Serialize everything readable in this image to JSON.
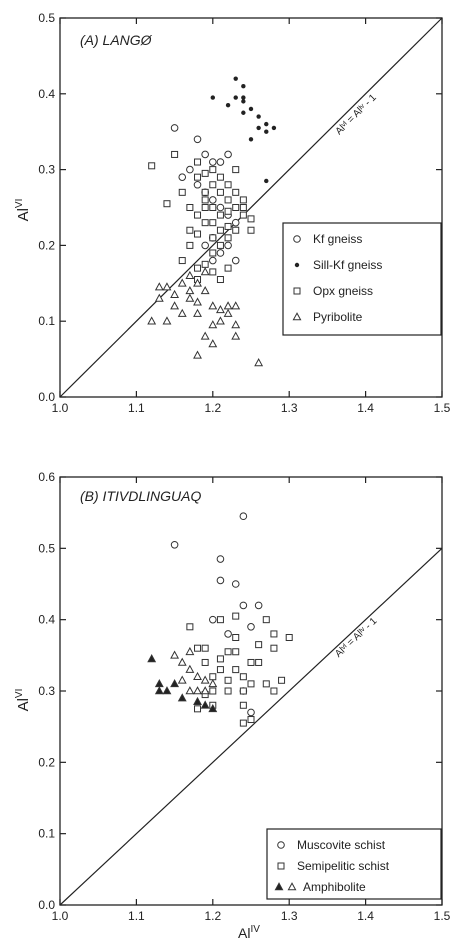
{
  "chart_data": [
    {
      "type": "scatter",
      "title": "(A) LANGØ",
      "xlabel": "",
      "ylabel": "Al^VI",
      "ylabel_base": "Al",
      "ylabel_sup": "VI",
      "xlim": [
        1.0,
        1.5
      ],
      "ylim": [
        0.0,
        0.5
      ],
      "xticks": [
        "1.0",
        "1.1",
        "1.2",
        "1.3",
        "1.4",
        "1.5"
      ],
      "yticks": [
        "0.0",
        "0.1",
        "0.2",
        "0.3",
        "0.4",
        "0.5"
      ],
      "reference_line": {
        "label": "Al^VI = Al^IV - 1",
        "label_text": "Alᵛᴵ = Alᴵᵛ - 1",
        "from": [
          1.0,
          0.0
        ],
        "to": [
          1.5,
          0.5
        ]
      },
      "legend_position": "right-middle",
      "grid": false,
      "series": [
        {
          "name": "Kf gneiss",
          "marker": "open-circle",
          "points": [
            [
              1.15,
              0.355
            ],
            [
              1.17,
              0.3
            ],
            [
              1.16,
              0.29
            ],
            [
              1.18,
              0.34
            ],
            [
              1.19,
              0.32
            ],
            [
              1.2,
              0.31
            ],
            [
              1.21,
              0.31
            ],
            [
              1.22,
              0.32
            ],
            [
              1.18,
              0.28
            ],
            [
              1.19,
              0.27
            ],
            [
              1.2,
              0.26
            ],
            [
              1.21,
              0.25
            ],
            [
              1.22,
              0.24
            ],
            [
              1.23,
              0.23
            ],
            [
              1.2,
              0.21
            ],
            [
              1.19,
              0.2
            ],
            [
              1.21,
              0.19
            ],
            [
              1.2,
              0.18
            ],
            [
              1.22,
              0.2
            ],
            [
              1.23,
              0.18
            ]
          ]
        },
        {
          "name": "Sill-Kf gneiss",
          "marker": "filled-dot",
          "points": [
            [
              1.2,
              0.395
            ],
            [
              1.22,
              0.385
            ],
            [
              1.23,
              0.42
            ],
            [
              1.24,
              0.41
            ],
            [
              1.24,
              0.39
            ],
            [
              1.25,
              0.38
            ],
            [
              1.24,
              0.375
            ],
            [
              1.26,
              0.37
            ],
            [
              1.26,
              0.355
            ],
            [
              1.27,
              0.36
            ],
            [
              1.27,
              0.35
            ],
            [
              1.28,
              0.355
            ],
            [
              1.25,
              0.34
            ],
            [
              1.23,
              0.395
            ],
            [
              1.24,
              0.395
            ],
            [
              1.27,
              0.285
            ]
          ]
        },
        {
          "name": "Opx gneiss",
          "marker": "open-square",
          "points": [
            [
              1.12,
              0.305
            ],
            [
              1.14,
              0.255
            ],
            [
              1.15,
              0.32
            ],
            [
              1.16,
              0.27
            ],
            [
              1.17,
              0.25
            ],
            [
              1.17,
              0.22
            ],
            [
              1.18,
              0.31
            ],
            [
              1.18,
              0.29
            ],
            [
              1.18,
              0.24
            ],
            [
              1.19,
              0.295
            ],
            [
              1.19,
              0.27
            ],
            [
              1.19,
              0.25
            ],
            [
              1.19,
              0.23
            ],
            [
              1.2,
              0.3
            ],
            [
              1.2,
              0.28
            ],
            [
              1.2,
              0.25
            ],
            [
              1.2,
              0.23
            ],
            [
              1.2,
              0.21
            ],
            [
              1.2,
              0.19
            ],
            [
              1.21,
              0.29
            ],
            [
              1.21,
              0.27
            ],
            [
              1.21,
              0.24
            ],
            [
              1.21,
              0.22
            ],
            [
              1.21,
              0.2
            ],
            [
              1.22,
              0.28
            ],
            [
              1.22,
              0.26
            ],
            [
              1.22,
              0.245
            ],
            [
              1.22,
              0.225
            ],
            [
              1.22,
              0.21
            ],
            [
              1.23,
              0.3
            ],
            [
              1.23,
              0.27
            ],
            [
              1.23,
              0.25
            ],
            [
              1.23,
              0.22
            ],
            [
              1.24,
              0.26
            ],
            [
              1.24,
              0.24
            ],
            [
              1.24,
              0.25
            ],
            [
              1.25,
              0.235
            ],
            [
              1.25,
              0.22
            ],
            [
              1.17,
              0.2
            ],
            [
              1.18,
              0.215
            ],
            [
              1.19,
              0.26
            ],
            [
              1.2,
              0.165
            ],
            [
              1.19,
              0.175
            ],
            [
              1.22,
              0.17
            ],
            [
              1.21,
              0.155
            ],
            [
              1.18,
              0.17
            ],
            [
              1.18,
              0.155
            ],
            [
              1.16,
              0.18
            ]
          ]
        },
        {
          "name": "Pyribolite",
          "marker": "open-triangle",
          "points": [
            [
              1.12,
              0.1
            ],
            [
              1.13,
              0.145
            ],
            [
              1.13,
              0.13
            ],
            [
              1.14,
              0.1
            ],
            [
              1.15,
              0.135
            ],
            [
              1.15,
              0.12
            ],
            [
              1.16,
              0.15
            ],
            [
              1.16,
              0.11
            ],
            [
              1.17,
              0.16
            ],
            [
              1.17,
              0.14
            ],
            [
              1.17,
              0.13
            ],
            [
              1.18,
              0.15
            ],
            [
              1.18,
              0.125
            ],
            [
              1.18,
              0.11
            ],
            [
              1.19,
              0.165
            ],
            [
              1.19,
              0.14
            ],
            [
              1.19,
              0.08
            ],
            [
              1.2,
              0.12
            ],
            [
              1.2,
              0.095
            ],
            [
              1.2,
              0.07
            ],
            [
              1.21,
              0.115
            ],
            [
              1.21,
              0.1
            ],
            [
              1.22,
              0.12
            ],
            [
              1.22,
              0.11
            ],
            [
              1.23,
              0.12
            ],
            [
              1.23,
              0.095
            ],
            [
              1.23,
              0.08
            ],
            [
              1.18,
              0.055
            ],
            [
              1.26,
              0.045
            ],
            [
              1.14,
              0.145
            ]
          ]
        }
      ]
    },
    {
      "type": "scatter",
      "title": "(B) ITIVDLINGUAQ",
      "xlabel": "Al^IV",
      "xlabel_base": "Al",
      "xlabel_sup": "IV",
      "ylabel": "Al^VI",
      "ylabel_base": "Al",
      "ylabel_sup": "VI",
      "xlim": [
        1.0,
        1.5
      ],
      "ylim": [
        0.0,
        0.6
      ],
      "xticks": [
        "1.0",
        "1.1",
        "1.2",
        "1.3",
        "1.4",
        "1.5"
      ],
      "yticks": [
        "0.0",
        "0.1",
        "0.2",
        "0.3",
        "0.4",
        "0.5",
        "0.6"
      ],
      "reference_line": {
        "label": "Al^VI = Al^IV - 1",
        "label_text": "Alᵛᴵ = Alᴵᵛ - 1",
        "from": [
          1.0,
          0.0
        ],
        "to": [
          1.5,
          0.5
        ]
      },
      "legend_position": "bottom-right",
      "grid": false,
      "series": [
        {
          "name": "Muscovite schist",
          "marker": "open-circle",
          "points": [
            [
              1.15,
              0.505
            ],
            [
              1.21,
              0.485
            ],
            [
              1.24,
              0.545
            ],
            [
              1.21,
              0.455
            ],
            [
              1.23,
              0.45
            ],
            [
              1.24,
              0.42
            ],
            [
              1.26,
              0.42
            ],
            [
              1.25,
              0.39
            ],
            [
              1.2,
              0.4
            ],
            [
              1.22,
              0.38
            ],
            [
              1.24,
              0.3
            ],
            [
              1.25,
              0.27
            ]
          ]
        },
        {
          "name": "Semipelitic schist",
          "marker": "open-square",
          "points": [
            [
              1.17,
              0.39
            ],
            [
              1.18,
              0.36
            ],
            [
              1.19,
              0.34
            ],
            [
              1.2,
              0.32
            ],
            [
              1.2,
              0.3
            ],
            [
              1.21,
              0.345
            ],
            [
              1.21,
              0.33
            ],
            [
              1.22,
              0.315
            ],
            [
              1.22,
              0.3
            ],
            [
              1.23,
              0.405
            ],
            [
              1.23,
              0.375
            ],
            [
              1.23,
              0.355
            ],
            [
              1.23,
              0.33
            ],
            [
              1.24,
              0.32
            ],
            [
              1.24,
              0.3
            ],
            [
              1.24,
              0.28
            ],
            [
              1.25,
              0.34
            ],
            [
              1.25,
              0.31
            ],
            [
              1.25,
              0.26
            ],
            [
              1.26,
              0.365
            ],
            [
              1.26,
              0.34
            ],
            [
              1.27,
              0.31
            ],
            [
              1.27,
              0.4
            ],
            [
              1.28,
              0.38
            ],
            [
              1.28,
              0.36
            ],
            [
              1.28,
              0.3
            ],
            [
              1.29,
              0.315
            ],
            [
              1.3,
              0.375
            ],
            [
              1.24,
              0.255
            ],
            [
              1.19,
              0.295
            ],
            [
              1.2,
              0.28
            ],
            [
              1.18,
              0.275
            ],
            [
              1.19,
              0.36
            ],
            [
              1.21,
              0.4
            ],
            [
              1.22,
              0.355
            ]
          ]
        },
        {
          "name": "Amphibolite",
          "marker": "triangle-filled-open",
          "points": [
            [
              1.12,
              0.345
            ],
            [
              1.13,
              0.31
            ],
            [
              1.14,
              0.3
            ],
            [
              1.13,
              0.3
            ],
            [
              1.15,
              0.31
            ],
            [
              1.16,
              0.29
            ],
            [
              1.18,
              0.285
            ],
            [
              1.19,
              0.28
            ],
            [
              1.2,
              0.275
            ],
            [
              1.15,
              0.35
            ],
            [
              1.16,
              0.34
            ],
            [
              1.17,
              0.355
            ],
            [
              1.17,
              0.33
            ],
            [
              1.18,
              0.32
            ],
            [
              1.16,
              0.315
            ],
            [
              1.17,
              0.3
            ],
            [
              1.18,
              0.3
            ],
            [
              1.19,
              0.315
            ],
            [
              1.19,
              0.3
            ],
            [
              1.2,
              0.31
            ]
          ]
        }
      ]
    }
  ]
}
